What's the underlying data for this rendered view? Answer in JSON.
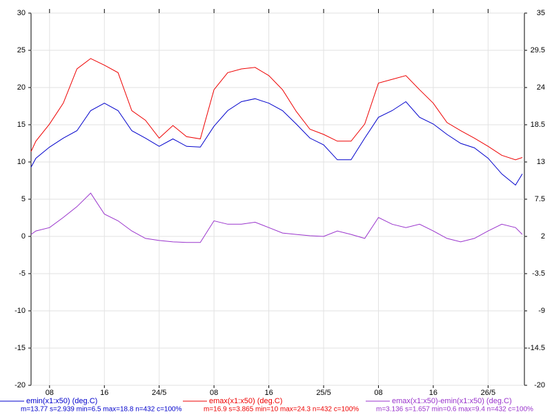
{
  "chart_data": {
    "type": "line",
    "x": [
      5.3,
      6,
      8,
      10,
      12,
      14,
      16,
      18,
      20,
      22,
      24,
      26,
      28,
      30,
      32,
      34,
      36,
      38,
      40,
      42,
      44,
      46,
      48,
      50,
      52,
      54,
      56,
      58,
      60,
      62,
      64,
      66,
      68,
      70,
      72,
      74,
      76,
      77
    ],
    "xlim": [
      5.3,
      77.3
    ],
    "xticks": [
      {
        "value": 8,
        "label": "08"
      },
      16,
      {
        "value": 24,
        "label": "24/5"
      },
      {
        "value": 32,
        "label": "08"
      },
      {
        "value": 40,
        "label": "16"
      },
      {
        "value": 48,
        "label": "25/5"
      },
      {
        "value": 56,
        "label": "08"
      },
      {
        "value": 64,
        "label": "16"
      },
      {
        "value": 72,
        "label": "26/5"
      }
    ],
    "ylim": [
      -20,
      30
    ],
    "yticks": [
      -20,
      -15,
      -10,
      -5,
      0,
      5,
      10,
      15,
      20,
      25,
      30
    ],
    "y2lim": [
      -20,
      35
    ],
    "y2ticks": [
      -20,
      -14.5,
      -9,
      -3.5,
      2,
      7.5,
      13,
      18.5,
      24,
      29.5,
      35
    ],
    "grid": true,
    "series": [
      {
        "name": "emin(x1:x50) (deg.C)",
        "color": "#0000cc",
        "stats": "m=13.77 s=2.939 min=6.5 max=18.8 n=432 c=100%",
        "values": [
          9.3,
          10.5,
          12.0,
          13.2,
          14.2,
          16.9,
          17.9,
          16.9,
          14.2,
          13.2,
          12.1,
          13.1,
          12.1,
          12.0,
          14.8,
          16.9,
          18.1,
          18.5,
          17.9,
          16.9,
          15.1,
          13.2,
          12.3,
          10.3,
          10.3,
          13.2,
          16.0,
          16.9,
          18.1,
          16.0,
          15.1,
          13.7,
          12.5,
          11.9,
          10.5,
          8.4,
          6.9,
          8.4
        ]
      },
      {
        "name": "emax(x1:x50) (deg.C)",
        "color": "#ee0000",
        "stats": "m=16.9 s=3.865 min=10 max=24.3 n=432 c=100%",
        "values": [
          11.4,
          12.8,
          15.1,
          17.9,
          22.5,
          23.9,
          23.0,
          22.0,
          16.9,
          15.6,
          13.2,
          14.9,
          13.4,
          13.1,
          19.7,
          22.0,
          22.5,
          22.7,
          21.6,
          19.7,
          16.8,
          14.4,
          13.7,
          12.8,
          12.8,
          15.1,
          20.6,
          21.1,
          21.6,
          19.7,
          17.9,
          15.3,
          14.2,
          13.2,
          12.1,
          10.9,
          10.3,
          10.6
        ]
      },
      {
        "name": "emax(x1:x50)-emin(x1:x50) (deg.C)",
        "color": "#9933cc",
        "axis": "y2",
        "stats": "m=3.136 s=1.657 min=0.6 max=9.4 n=432 c=100%",
        "values": [
          2.3,
          2.8,
          3.3,
          4.8,
          6.4,
          8.4,
          5.3,
          4.3,
          2.8,
          1.7,
          1.4,
          1.2,
          1.1,
          1.1,
          4.3,
          3.8,
          3.8,
          4.1,
          3.3,
          2.5,
          2.3,
          2.1,
          2.0,
          2.8,
          2.3,
          1.7,
          4.8,
          3.8,
          3.3,
          3.8,
          2.8,
          1.7,
          1.2,
          1.7,
          2.8,
          3.8,
          3.3,
          2.3
        ]
      }
    ]
  }
}
